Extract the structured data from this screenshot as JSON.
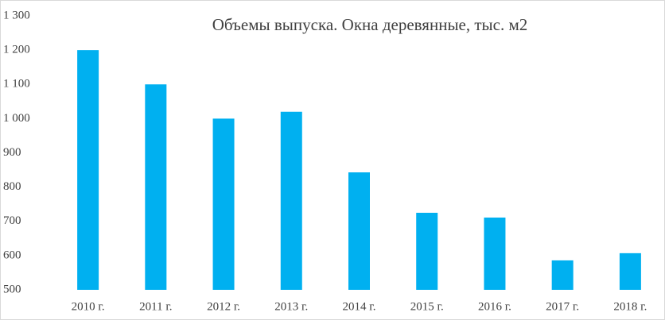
{
  "chart_data": {
    "type": "bar",
    "title": "Объемы выпуска. Окна деревянные, тыс. м2",
    "categories": [
      "2010 г.",
      "2011 г.",
      "2012 г.",
      "2013 г.",
      "2014 г.",
      "2015 г.",
      "2016 г.",
      "2017 г.",
      "2018 г."
    ],
    "values": [
      1200,
      1100,
      1000,
      1020,
      843,
      725,
      711,
      586,
      607
    ],
    "color": "#00b0f0",
    "ylim": [
      500,
      1300
    ],
    "yticks": [
      500,
      600,
      700,
      800,
      900,
      {
        "value": 1000,
        "label": "1 000"
      },
      {
        "value": 1100,
        "label": "1 100"
      },
      {
        "value": 1200,
        "label": "1 200"
      },
      {
        "value": 1300,
        "label": "1 300"
      }
    ],
    "grid": false
  }
}
